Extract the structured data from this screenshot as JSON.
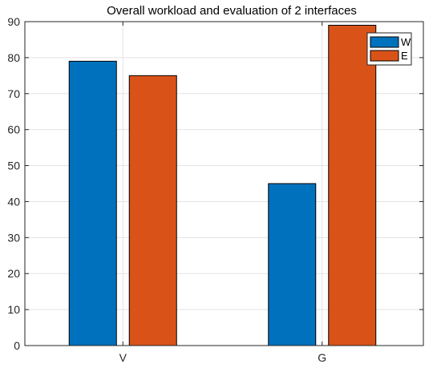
{
  "chart_data": {
    "type": "bar",
    "title": "Overall workload and evaluation of 2 interfaces",
    "xlabel": "",
    "ylabel": "",
    "categories": [
      "V",
      "G"
    ],
    "series": [
      {
        "name": "W",
        "values": [
          79,
          45
        ],
        "color": "#0072BD"
      },
      {
        "name": "E",
        "values": [
          75,
          89
        ],
        "color": "#D95319"
      }
    ],
    "ylim": [
      0,
      90
    ],
    "yticks": [
      0,
      10,
      20,
      30,
      40,
      50,
      60,
      70,
      80,
      90
    ],
    "grid": true,
    "legend": "top-right"
  }
}
